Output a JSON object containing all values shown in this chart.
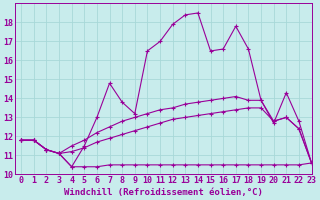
{
  "xlabel": "Windchill (Refroidissement éolien,°C)",
  "background_color": "#c8ecec",
  "grid_color": "#a8d8d8",
  "line_color": "#990099",
  "x": [
    0,
    1,
    2,
    3,
    4,
    5,
    6,
    7,
    8,
    9,
    10,
    11,
    12,
    13,
    14,
    15,
    16,
    17,
    18,
    19,
    20,
    21,
    22,
    23
  ],
  "series": [
    [
      11.8,
      11.8,
      11.3,
      11.1,
      10.4,
      11.5,
      13.0,
      14.8,
      13.8,
      13.2,
      16.5,
      17.0,
      17.9,
      18.4,
      18.5,
      16.5,
      16.6,
      17.8,
      16.6,
      13.9,
      12.7,
      14.3,
      12.8,
      10.6
    ],
    [
      11.8,
      11.8,
      11.3,
      11.1,
      11.5,
      11.8,
      12.2,
      12.5,
      12.8,
      13.0,
      13.2,
      13.4,
      13.5,
      13.7,
      13.8,
      13.9,
      14.0,
      14.1,
      13.9,
      13.9,
      12.8,
      13.0,
      12.4,
      10.6
    ],
    [
      11.8,
      11.8,
      11.3,
      11.1,
      11.2,
      11.4,
      11.7,
      11.9,
      12.1,
      12.3,
      12.5,
      12.7,
      12.9,
      13.0,
      13.1,
      13.2,
      13.3,
      13.4,
      13.5,
      13.5,
      12.8,
      13.0,
      12.4,
      10.6
    ],
    [
      11.8,
      11.8,
      11.3,
      11.1,
      10.4,
      10.4,
      10.4,
      10.5,
      10.5,
      10.5,
      10.5,
      10.5,
      10.5,
      10.5,
      10.5,
      10.5,
      10.5,
      10.5,
      10.5,
      10.5,
      10.5,
      10.5,
      10.5,
      10.6
    ]
  ],
  "ylim": [
    10,
    19
  ],
  "xlim": [
    -0.5,
    23
  ],
  "yticks": [
    10,
    11,
    12,
    13,
    14,
    15,
    16,
    17,
    18
  ],
  "xticks": [
    0,
    1,
    2,
    3,
    4,
    5,
    6,
    7,
    8,
    9,
    10,
    11,
    12,
    13,
    14,
    15,
    16,
    17,
    18,
    19,
    20,
    21,
    22,
    23
  ],
  "label_fontsize": 6.5,
  "tick_fontsize": 6.0
}
